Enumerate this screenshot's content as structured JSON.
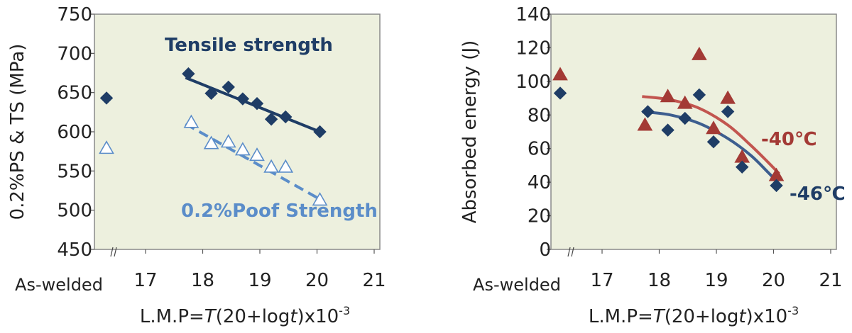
{
  "chart_data": [
    {
      "type": "scatter",
      "xlabel_parts": {
        "prefix": "L.M.P=",
        "T": "T",
        "mid": "(20+log",
        "t": "t",
        "suffix": ")x10",
        "sup": "-3"
      },
      "ylabel": "0.2%PS & TS (MPa)",
      "x_ticks": [
        "17",
        "18",
        "19",
        "20",
        "21"
      ],
      "x_extra_label": "As-welded",
      "ylim": [
        450,
        750
      ],
      "y_ticks": [
        "450",
        "500",
        "550",
        "600",
        "650",
        "700",
        "750"
      ],
      "grid": false,
      "background": "#edf0de",
      "series": [
        {
          "name": "Tensile strength",
          "marker": "diamond-filled",
          "color": "#1f3d66",
          "as_welded": 643,
          "points": [
            [
              17.75,
              674
            ],
            [
              18.15,
              649
            ],
            [
              18.45,
              657
            ],
            [
              18.7,
              642
            ],
            [
              18.95,
              636
            ],
            [
              19.2,
              616
            ],
            [
              19.45,
              619
            ],
            [
              20.05,
              600
            ]
          ],
          "fit": [
            [
              17.7,
              669
            ],
            [
              20.05,
              600
            ]
          ],
          "fit_style": "solid"
        },
        {
          "name": "0.2%Poof Strength",
          "marker": "triangle-open",
          "color": "#5b8dc9",
          "as_welded": 579,
          "points": [
            [
              17.8,
              612
            ],
            [
              18.15,
              585
            ],
            [
              18.45,
              587
            ],
            [
              18.7,
              577
            ],
            [
              18.95,
              570
            ],
            [
              19.2,
              555
            ],
            [
              19.45,
              555
            ],
            [
              20.05,
              513
            ]
          ],
          "fit": [
            [
              17.7,
              610
            ],
            [
              20.05,
              514
            ]
          ],
          "fit_style": "dashed"
        }
      ]
    },
    {
      "type": "scatter",
      "xlabel_parts": {
        "prefix": "L.M.P=",
        "T": "T",
        "mid": "(20+log",
        "t": "t",
        "suffix": ")x10",
        "sup": "-3"
      },
      "ylabel": "Absorbed energy (J)",
      "x_ticks": [
        "17",
        "18",
        "19",
        "20",
        "21"
      ],
      "x_extra_label": "As-welded",
      "ylim": [
        0,
        140
      ],
      "y_ticks": [
        "0",
        "20",
        "40",
        "60",
        "80",
        "100",
        "120",
        "140"
      ],
      "grid": false,
      "background": "#edf0de",
      "series": [
        {
          "name": "-40℃",
          "marker": "triangle-filled",
          "color": "#a33a35",
          "line_color": "#c2554f",
          "as_welded": 104,
          "points": [
            [
              17.75,
              74
            ],
            [
              18.15,
              91
            ],
            [
              18.45,
              87
            ],
            [
              18.7,
              116
            ],
            [
              18.95,
              72
            ],
            [
              19.2,
              90
            ],
            [
              19.45,
              55
            ],
            [
              20.05,
              44
            ]
          ],
          "fit": [
            [
              17.7,
              91
            ],
            [
              18.2,
              89
            ],
            [
              18.7,
              84
            ],
            [
              19.2,
              74
            ],
            [
              19.6,
              62
            ],
            [
              19.9,
              52
            ],
            [
              20.1,
              45
            ]
          ],
          "fit_style": "solid"
        },
        {
          "name": "-46℃",
          "marker": "diamond-filled",
          "color": "#1f3d66",
          "line_color": "#3d5e8f",
          "as_welded": 93,
          "points": [
            [
              17.8,
              82
            ],
            [
              18.15,
              71
            ],
            [
              18.45,
              78
            ],
            [
              18.7,
              92
            ],
            [
              18.95,
              64
            ],
            [
              19.2,
              82
            ],
            [
              19.45,
              49
            ],
            [
              20.05,
              38
            ]
          ],
          "fit": [
            [
              17.7,
              82
            ],
            [
              18.2,
              80
            ],
            [
              18.7,
              75
            ],
            [
              19.2,
              66
            ],
            [
              19.6,
              56
            ],
            [
              19.9,
              46
            ],
            [
              20.1,
              39
            ]
          ],
          "fit_style": "solid"
        }
      ]
    }
  ]
}
